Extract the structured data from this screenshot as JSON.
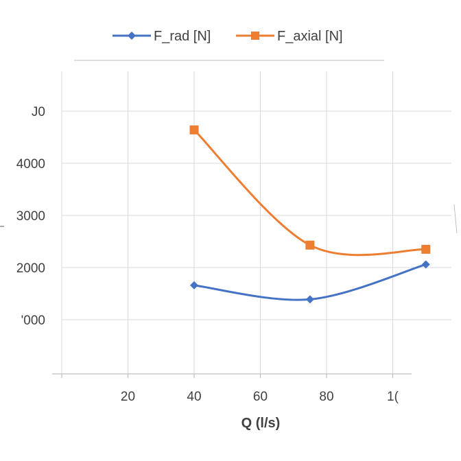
{
  "chart_data": {
    "type": "line",
    "smooth": true,
    "x_tick_labels": [
      "",
      "20",
      "40",
      "60",
      "80",
      "1("
    ],
    "y_tick_labels": [
      "",
      "'000",
      "2000",
      "3000",
      "4000",
      "J0"
    ],
    "xlabel": "Q (l/s)",
    "ylabel": "",
    "xlim": [
      0,
      110
    ],
    "ylim": [
      0,
      5000
    ],
    "grid": true,
    "legend_position": "top",
    "series": [
      {
        "name": "F_rad [N]",
        "color": "#4472C4",
        "marker": "diamond",
        "points": [
          [
            40,
            1660
          ],
          [
            75,
            1390
          ],
          [
            110,
            2060
          ]
        ]
      },
      {
        "name": "F_axial [N]",
        "color": "#ED7D31",
        "marker": "square",
        "points": [
          [
            40,
            4640
          ],
          [
            75,
            2430
          ],
          [
            110,
            2350
          ]
        ]
      }
    ]
  }
}
